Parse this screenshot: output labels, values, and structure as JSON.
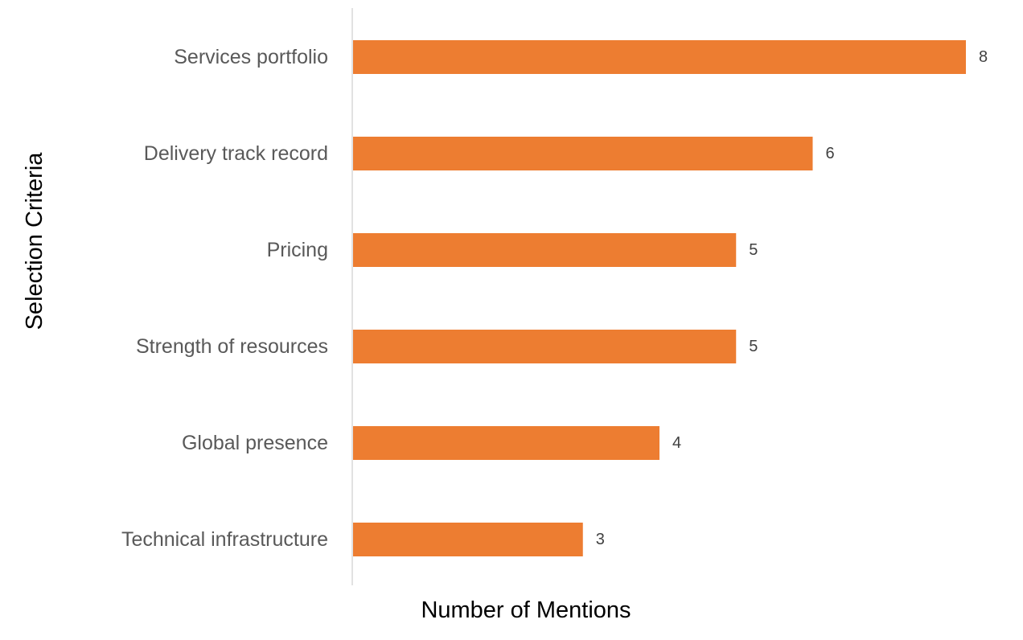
{
  "chart_data": {
    "type": "bar",
    "orientation": "horizontal",
    "categories": [
      "Services portfolio",
      "Delivery track record",
      "Pricing",
      "Strength of resources",
      "Global presence",
      "Technical infrastructure"
    ],
    "values": [
      8,
      6,
      5,
      5,
      4,
      3
    ],
    "title": "",
    "xlabel": "Number of Mentions",
    "ylabel": "Selection Criteria",
    "xlim": [
      0,
      8
    ],
    "grid": false,
    "legend": "none",
    "data_labels": true,
    "bar_color": "#ED7D31",
    "axis_color": "#D9D9D9"
  }
}
